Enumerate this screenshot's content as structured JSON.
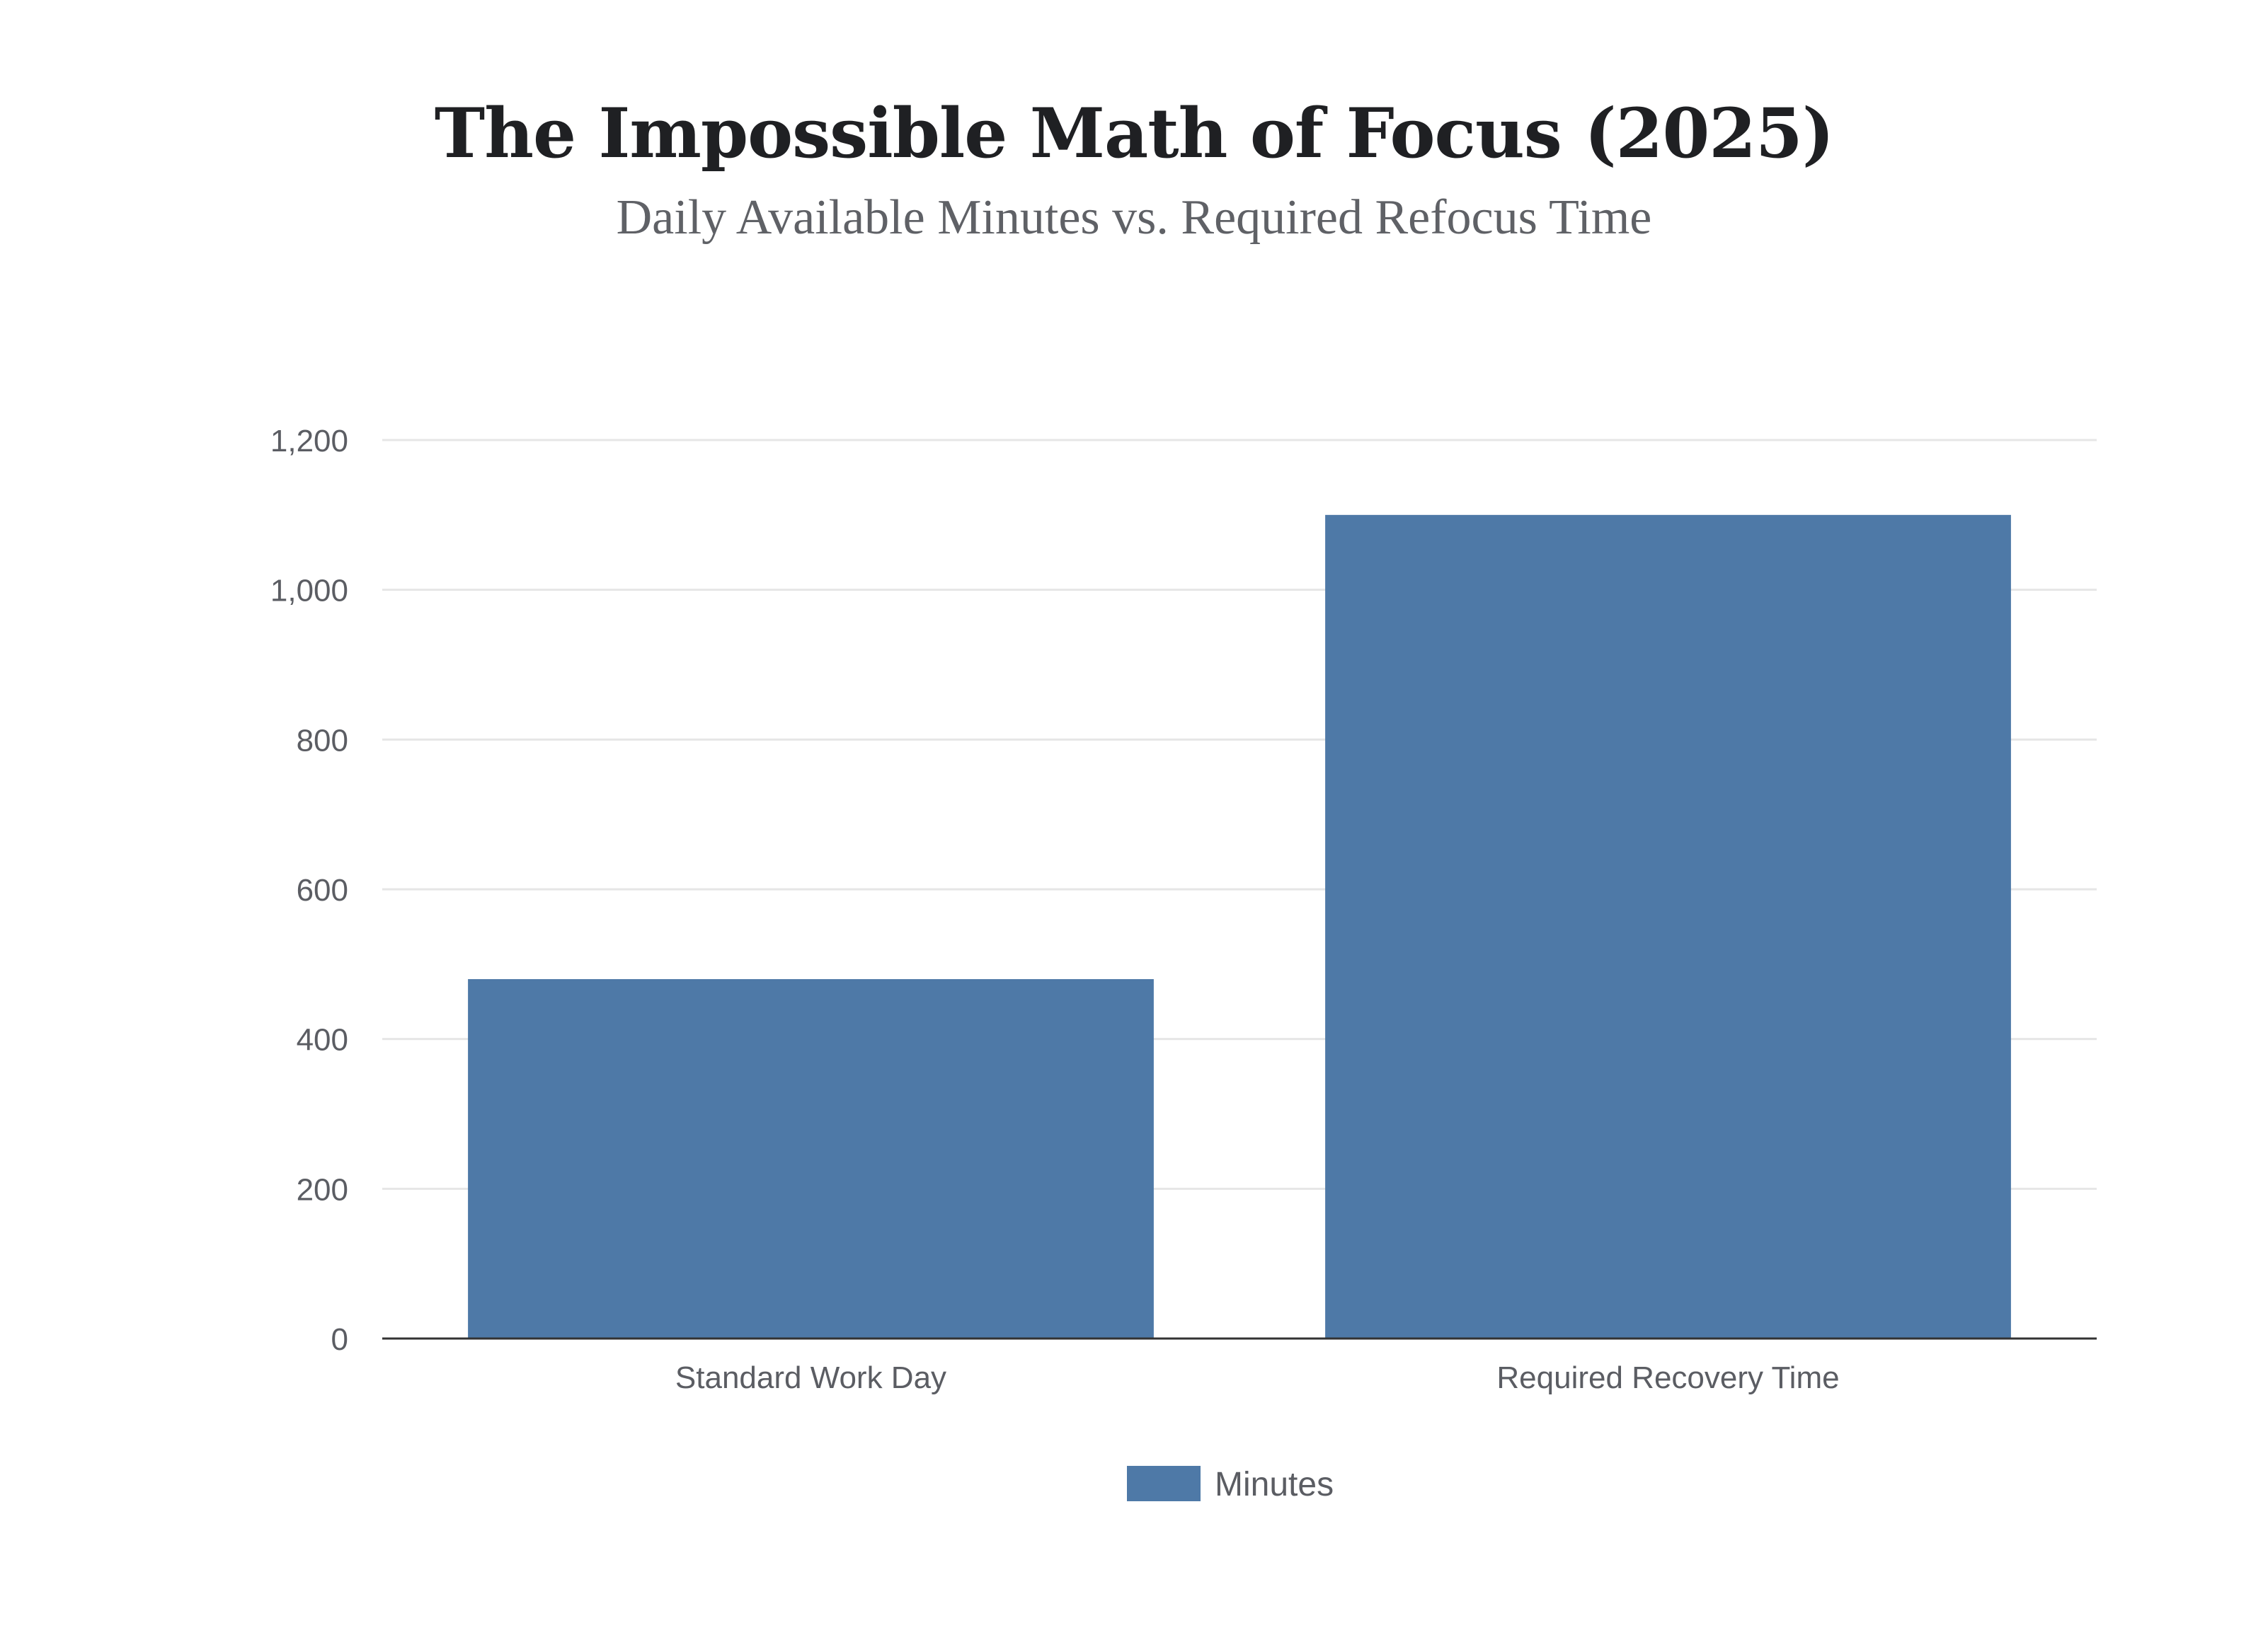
{
  "chart_data": {
    "type": "bar",
    "title": "The Impossible Math of Focus (2025)",
    "subtitle": "Daily Available Minutes vs. Required Refocus Time",
    "categories": [
      "Standard Work Day",
      "Required Recovery Time"
    ],
    "series": [
      {
        "name": "Minutes",
        "values": [
          480,
          1100
        ]
      }
    ],
    "ylim": [
      0,
      1200
    ],
    "yticks": [
      0,
      200,
      400,
      600,
      800,
      1000,
      1200
    ],
    "ytick_labels": [
      "0",
      "200",
      "400",
      "600",
      "800",
      "1,000",
      "1,200"
    ],
    "grid": true,
    "legend_position": "bottom-center",
    "colors": {
      "bar": "#4e79a7",
      "grid": "#e6e6e6",
      "axis": "#333333"
    }
  }
}
